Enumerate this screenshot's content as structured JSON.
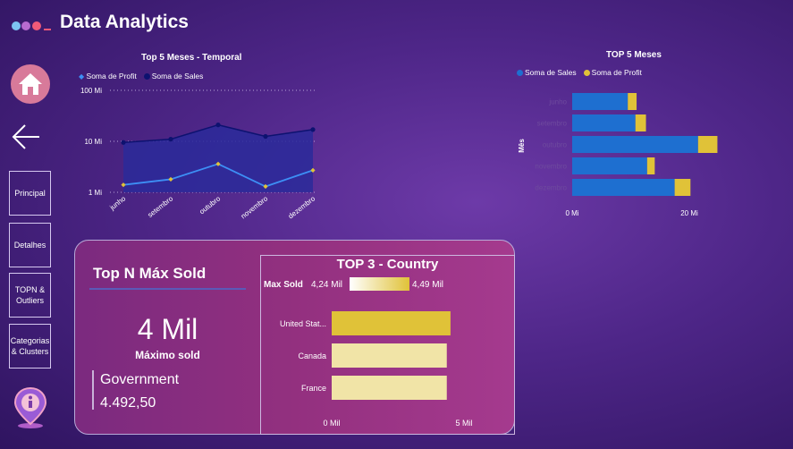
{
  "header": {
    "title": "Data Analytics",
    "logo_icon": "dio-logo"
  },
  "sidebar": {
    "home_icon": "home-icon",
    "back_icon": "back-arrow-icon",
    "items": [
      {
        "label": "Principal"
      },
      {
        "label": "Detalhes"
      },
      {
        "label": "TOPN & Outliers"
      },
      {
        "label": "Categorias & Clusters"
      }
    ],
    "info_icon": "info-location-pin-icon"
  },
  "line_chart": {
    "title": "Top 5 Meses - Temporal",
    "legend": [
      "Soma de Profit",
      "Soma de  Sales"
    ],
    "y_ticks": [
      "100 Mi",
      "10 Mi",
      "1 Mi"
    ]
  },
  "bar_chart": {
    "title": "TOP 5 Meses",
    "legend": [
      "Soma de  Sales",
      "Soma de Profit"
    ],
    "ylabel": "Mês",
    "x_ticks": [
      "0 Mi",
      "20 Mi"
    ]
  },
  "kpi": {
    "title": "Top N Máx Sold",
    "value": "4 Mil",
    "label": "Máximo sold",
    "segment": "Government",
    "segment_value": "4.492,50"
  },
  "country_chart": {
    "title": "TOP 3 - Country",
    "gradient_label": "Max Sold",
    "gradient_min": "4,24 Mil",
    "gradient_max": "4,49 Mil",
    "x_ticks": [
      "0 Mil",
      "5 Mil"
    ]
  },
  "colors": {
    "sales": "#1e6fd0",
    "profit": "#e0c238",
    "line_sales": "#0d1270",
    "line_profit": "#3d8ff5"
  },
  "chart_data": [
    {
      "type": "line",
      "title": "Top 5 Meses - Temporal",
      "categories": [
        "junho",
        "setembro",
        "outubro",
        "novembro",
        "dezembro"
      ],
      "yscale": "log",
      "ylim": [
        1000000,
        100000000
      ],
      "series": [
        {
          "name": "Soma de Profit",
          "values": [
            1400000,
            1800000,
            3600000,
            1300000,
            2700000
          ]
        },
        {
          "name": "Soma de  Sales",
          "values": [
            9500000,
            11000000,
            21000000,
            12500000,
            17000000
          ]
        }
      ]
    },
    {
      "type": "bar",
      "orientation": "horizontal",
      "stacked": true,
      "title": "TOP 5 Meses",
      "categories": [
        "junho",
        "setembro",
        "outubro",
        "novembro",
        "dezembro"
      ],
      "xlim": [
        0,
        25000000
      ],
      "series": [
        {
          "name": "Soma de  Sales",
          "values": [
            9500000,
            10800000,
            21500000,
            12800000,
            17500000
          ]
        },
        {
          "name": "Soma de Profit",
          "values": [
            1500000,
            1800000,
            3300000,
            1300000,
            2700000
          ]
        }
      ]
    },
    {
      "type": "bar",
      "orientation": "horizontal",
      "title": "TOP 3 - Country",
      "categories": [
        "United Stat...",
        "Canada",
        "France"
      ],
      "values": [
        4490,
        4350,
        4350
      ],
      "xlim": [
        0,
        5000
      ]
    }
  ]
}
